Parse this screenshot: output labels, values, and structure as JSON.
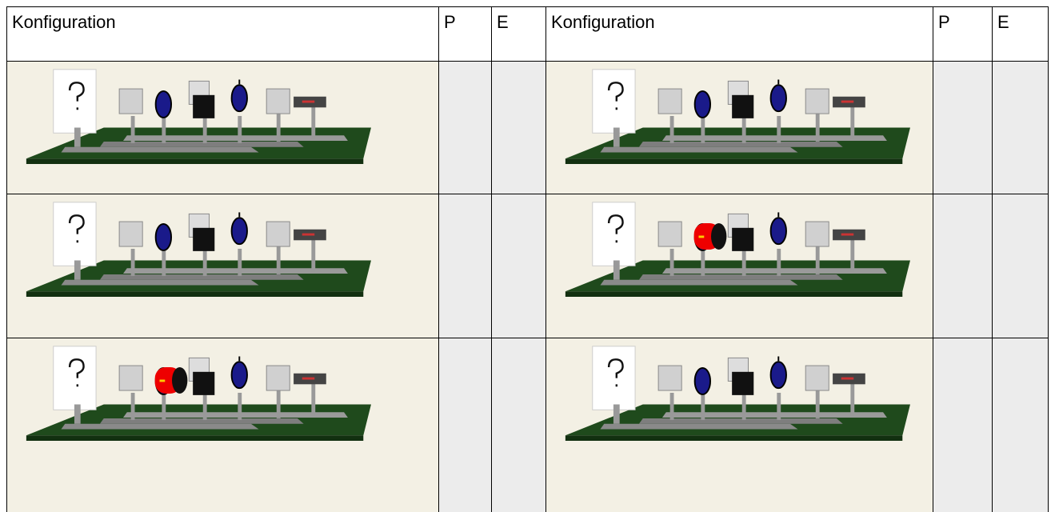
{
  "table": {
    "header": [
      "Konfiguration",
      "P",
      "E",
      "Konfiguration",
      "P",
      "E"
    ]
  }
}
